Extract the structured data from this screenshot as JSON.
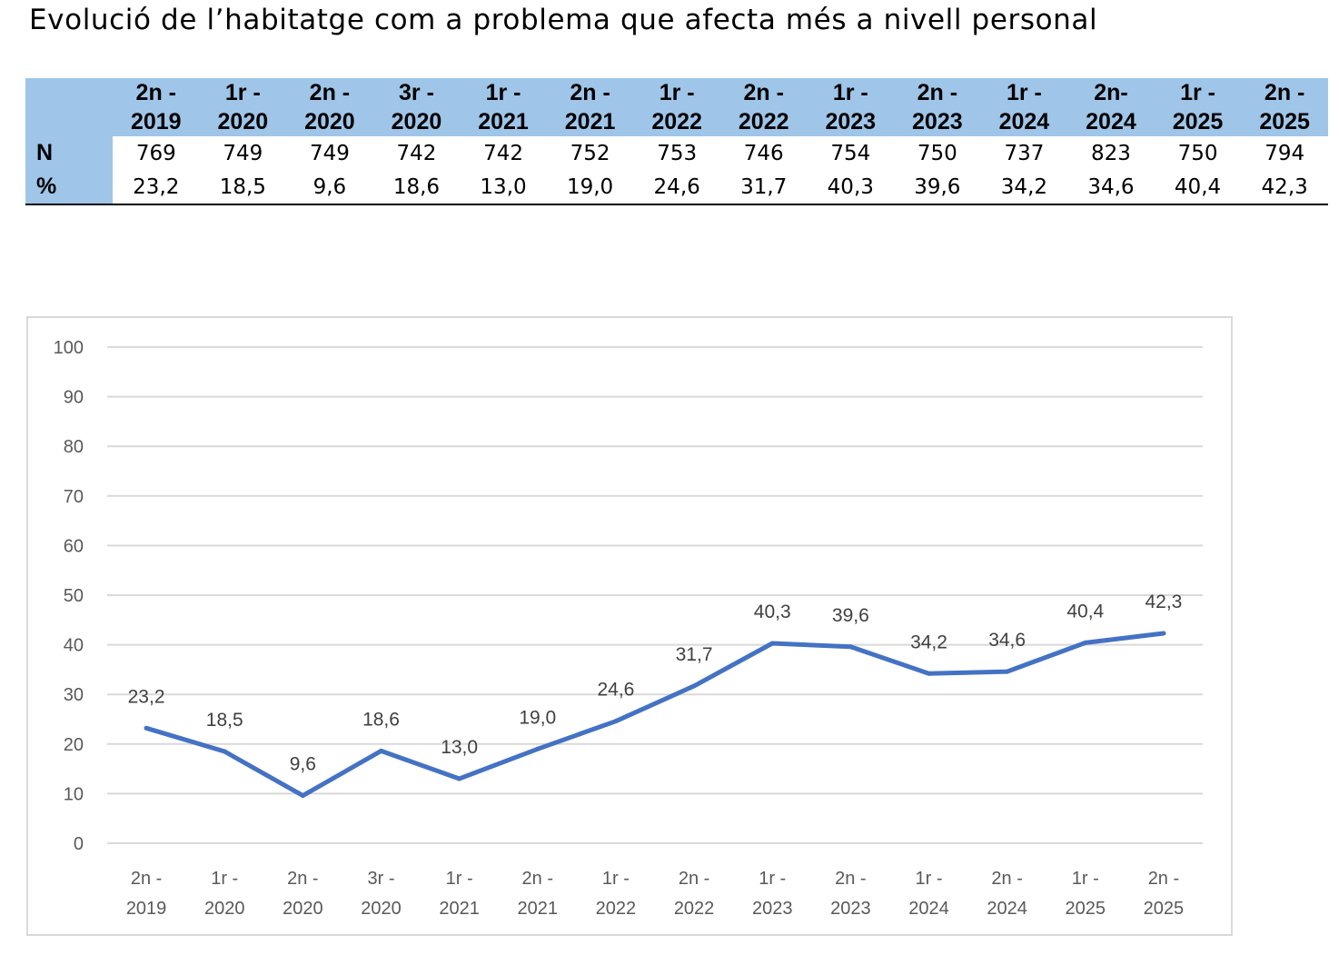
{
  "title": "Evolució de l’habitatge com a problema que afecta més a nivell personal",
  "table": {
    "periods": [
      [
        "2n -",
        "2019"
      ],
      [
        "1r -",
        "2020"
      ],
      [
        "2n -",
        "2020"
      ],
      [
        "3r -",
        "2020"
      ],
      [
        "1r -",
        "2021"
      ],
      [
        "2n -",
        "2021"
      ],
      [
        "1r -",
        "2022"
      ],
      [
        "2n -",
        "2022"
      ],
      [
        "1r -",
        "2023"
      ],
      [
        "2n -",
        "2023"
      ],
      [
        "1r -",
        "2024"
      ],
      [
        "2n-",
        "2024"
      ],
      [
        "1r -",
        "2025"
      ],
      [
        "2n -",
        "2025"
      ]
    ],
    "rows": [
      {
        "label": "N",
        "values": [
          "769",
          "749",
          "749",
          "742",
          "742",
          "752",
          "753",
          "746",
          "754",
          "750",
          "737",
          "823",
          "750",
          "794"
        ]
      },
      {
        "label": "%",
        "values": [
          "23,2",
          "18,5",
          "9,6",
          "18,6",
          "13,0",
          "19,0",
          "24,6",
          "31,7",
          "40,3",
          "39,6",
          "34,2",
          "34,6",
          "40,4",
          "42,3"
        ]
      }
    ]
  },
  "chart_data": {
    "type": "line",
    "title": "",
    "xlabel": "",
    "ylabel": "",
    "ylim": [
      0,
      100
    ],
    "yticks": [
      0,
      10,
      20,
      30,
      40,
      50,
      60,
      70,
      80,
      90,
      100
    ],
    "grid": true,
    "categories": [
      [
        "2n -",
        "2019"
      ],
      [
        "1r -",
        "2020"
      ],
      [
        "2n -",
        "2020"
      ],
      [
        "3r -",
        "2020"
      ],
      [
        "1r -",
        "2021"
      ],
      [
        "2n -",
        "2021"
      ],
      [
        "1r -",
        "2022"
      ],
      [
        "2n -",
        "2022"
      ],
      [
        "1r -",
        "2023"
      ],
      [
        "2n -",
        "2023"
      ],
      [
        "1r -",
        "2024"
      ],
      [
        "2n -",
        "2024"
      ],
      [
        "1r -",
        "2025"
      ],
      [
        "2n -",
        "2025"
      ]
    ],
    "series": [
      {
        "name": "%",
        "values": [
          23.2,
          18.5,
          9.6,
          18.6,
          13.0,
          19.0,
          24.6,
          31.7,
          40.3,
          39.6,
          34.2,
          34.6,
          40.4,
          42.3
        ],
        "labels": [
          "23,2",
          "18,5",
          "9,6",
          "18,6",
          "13,0",
          "19,0",
          "24,6",
          "31,7",
          "40,3",
          "39,6",
          "34,2",
          "34,6",
          "40,4",
          "42,3"
        ]
      }
    ],
    "colors": {
      "line": "#4472c4",
      "grid": "#d9d9d9",
      "text": "#595959",
      "label": "#404040"
    }
  }
}
